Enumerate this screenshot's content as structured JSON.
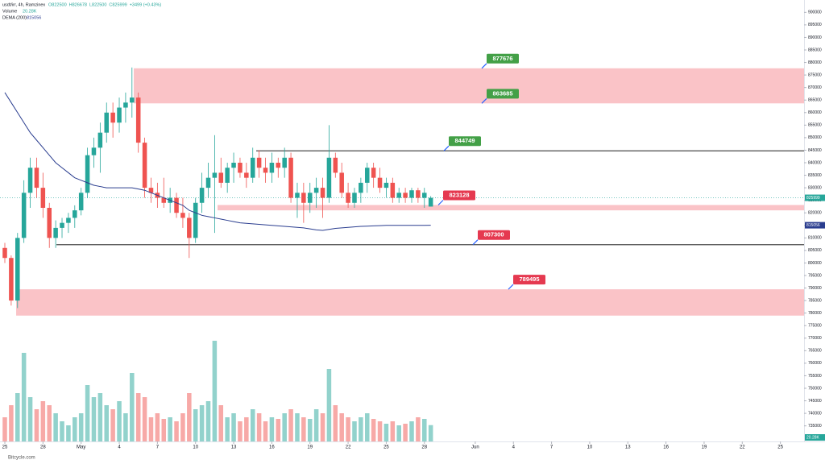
{
  "header": {
    "title": "usdt/irr, 4h, Ramzinex",
    "ohlc": [
      "O822500",
      "H826678",
      "L822500",
      "C825999",
      "+3499 (+0.43%)"
    ],
    "volume_label": "Volume",
    "volume_value": "20.28K",
    "dema_label": "DEMA (200)",
    "dema_value": "815056"
  },
  "footer": "Bitcycle.com",
  "chart_data": {
    "type": "candlestick",
    "x": [
      0,
      0.5,
      1,
      1.5,
      2,
      2.5,
      3,
      3.5,
      4,
      4.5,
      5,
      5.5,
      6,
      6.5,
      7,
      7.5,
      8,
      8.5,
      9,
      9.5,
      10,
      10.5,
      11,
      11.5,
      12,
      12.5,
      13,
      13.5,
      14,
      14.5,
      15,
      15.5,
      16,
      16.5,
      17,
      17.5,
      18,
      18.5,
      19,
      19.5,
      20,
      20.5,
      21,
      21.5,
      22,
      22.5,
      23,
      23.5,
      24,
      24.5,
      25,
      25.5,
      26,
      26.5,
      27,
      27.5,
      28,
      28.5,
      29,
      29.5,
      30,
      30.5,
      31,
      31.5,
      32,
      32.5,
      33,
      33.5
    ],
    "open": [
      806000,
      802000,
      785000,
      810000,
      828000,
      838000,
      830000,
      822000,
      810000,
      814000,
      816000,
      818000,
      821000,
      828000,
      843000,
      846000,
      852000,
      860000,
      856000,
      862000,
      864000,
      866000,
      848000,
      830000,
      828000,
      826000,
      824000,
      826000,
      820000,
      818000,
      810000,
      824000,
      830000,
      834000,
      836000,
      832000,
      838000,
      840000,
      836000,
      834000,
      842000,
      838000,
      836000,
      840000,
      838000,
      842000,
      826000,
      828000,
      824000,
      828000,
      830000,
      826000,
      842000,
      836000,
      828000,
      824000,
      828000,
      832000,
      838000,
      834000,
      830000,
      832000,
      826000,
      828000,
      826000,
      829000,
      826000,
      822500
    ],
    "high": [
      808000,
      803000,
      812000,
      833000,
      842000,
      842000,
      836000,
      824000,
      817000,
      818000,
      820000,
      823000,
      830000,
      846000,
      850000,
      856000,
      864000,
      864000,
      866000,
      868000,
      878000,
      868000,
      850000,
      834000,
      832000,
      834000,
      830000,
      828000,
      826000,
      820000,
      826000,
      836000,
      840000,
      851000,
      842000,
      840000,
      844000,
      842000,
      840000,
      846000,
      845000,
      842000,
      844000,
      842000,
      846000,
      844000,
      832000,
      832000,
      832000,
      834000,
      834000,
      855000,
      844000,
      840000,
      832000,
      830000,
      834000,
      840000,
      840000,
      838000,
      834000,
      834000,
      830000,
      830000,
      830000,
      830000,
      830000,
      826678
    ],
    "low": [
      800000,
      783000,
      782000,
      808000,
      822000,
      826000,
      818000,
      806000,
      806000,
      810000,
      812000,
      814000,
      819000,
      826000,
      838000,
      836000,
      848000,
      850000,
      852000,
      856000,
      858000,
      844000,
      826000,
      824000,
      822000,
      822000,
      820000,
      818000,
      814000,
      802000,
      808000,
      820000,
      826000,
      812000,
      830000,
      828000,
      832000,
      834000,
      830000,
      832000,
      834000,
      832000,
      832000,
      834000,
      834000,
      824000,
      818000,
      816000,
      820000,
      822000,
      818000,
      824000,
      834000,
      826000,
      822000,
      822000,
      824000,
      828000,
      830000,
      828000,
      826000,
      824000,
      824000,
      824000,
      824000,
      824000,
      822000,
      822500
    ],
    "close": [
      802000,
      785000,
      810000,
      828000,
      838000,
      830000,
      822000,
      810000,
      814000,
      816000,
      818000,
      821000,
      828000,
      843000,
      846000,
      852000,
      860000,
      856000,
      862000,
      864000,
      866000,
      848000,
      830000,
      828000,
      826000,
      824000,
      826000,
      820000,
      818000,
      810000,
      824000,
      830000,
      834000,
      836000,
      832000,
      838000,
      840000,
      836000,
      834000,
      842000,
      838000,
      836000,
      840000,
      838000,
      842000,
      826000,
      828000,
      824000,
      828000,
      830000,
      826000,
      842000,
      836000,
      828000,
      824000,
      828000,
      832000,
      838000,
      834000,
      830000,
      832000,
      826000,
      828000,
      826000,
      829000,
      826000,
      828000,
      825999
    ],
    "volume": [
      30,
      45,
      60,
      110,
      55,
      40,
      50,
      45,
      35,
      25,
      20,
      30,
      35,
      70,
      55,
      60,
      45,
      40,
      50,
      35,
      85,
      60,
      55,
      30,
      35,
      28,
      30,
      25,
      35,
      60,
      40,
      45,
      50,
      125,
      45,
      30,
      35,
      25,
      30,
      40,
      35,
      25,
      30,
      28,
      35,
      40,
      35,
      30,
      28,
      40,
      35,
      90,
      45,
      35,
      30,
      25,
      30,
      35,
      28,
      25,
      22,
      25,
      20,
      22,
      25,
      30,
      28,
      20.28
    ],
    "dema": [
      868000,
      864000,
      860000,
      856000,
      852000,
      849000,
      846000,
      843000,
      840000,
      838000,
      836000,
      834000,
      833000,
      832000,
      831000,
      830500,
      830000,
      830000,
      830000,
      830000,
      830000,
      829500,
      829000,
      828000,
      827000,
      826000,
      825000,
      824000,
      823000,
      821000,
      820000,
      819000,
      818500,
      818000,
      817500,
      817000,
      816500,
      816000,
      815800,
      815600,
      815400,
      815200,
      815000,
      814800,
      814600,
      814400,
      814200,
      814000,
      813600,
      813200,
      813000,
      813400,
      813800,
      814000,
      814200,
      814400,
      814600,
      814700,
      814800,
      814900,
      815000,
      815000,
      815000,
      815000,
      815000,
      815000,
      815000,
      815056
    ],
    "up_color": "#26a69a",
    "down_color": "#ef5350",
    "up_volume_color": "#92d2cc",
    "down_volume_color": "#f7a9a7",
    "dema_color": "#2a3d8f",
    "xlim": [
      -0.38,
      62.86
    ],
    "xticks": [
      {
        "value": 0,
        "label": "25"
      },
      {
        "value": 3,
        "label": "28"
      },
      {
        "value": 6,
        "label": "May"
      },
      {
        "value": 9,
        "label": "4"
      },
      {
        "value": 12,
        "label": "7"
      },
      {
        "value": 15,
        "label": "10"
      },
      {
        "value": 18,
        "label": "13"
      },
      {
        "value": 21,
        "label": "16"
      },
      {
        "value": 24,
        "label": "19"
      },
      {
        "value": 27,
        "label": "22"
      },
      {
        "value": 30,
        "label": "25"
      },
      {
        "value": 33,
        "label": "28"
      },
      {
        "value": 37,
        "label": "Jun"
      },
      {
        "value": 40,
        "label": "4"
      },
      {
        "value": 43,
        "label": "7"
      },
      {
        "value": 46,
        "label": "10"
      },
      {
        "value": 49,
        "label": "13"
      },
      {
        "value": 52,
        "label": "16"
      },
      {
        "value": 55,
        "label": "19"
      },
      {
        "value": 58,
        "label": "22"
      },
      {
        "value": 61,
        "label": "25"
      }
    ],
    "ylim": [
      732000,
      903000
    ],
    "yticks": [
      735000,
      740000,
      745000,
      750000,
      755000,
      760000,
      765000,
      770000,
      775000,
      780000,
      785000,
      790000,
      795000,
      800000,
      805000,
      810000,
      815000,
      820000,
      825000,
      830000,
      835000,
      840000,
      845000,
      850000,
      855000,
      860000,
      865000,
      870000,
      875000,
      880000,
      885000,
      890000,
      895000,
      900000
    ],
    "volume_lim": [
      0,
      130
    ],
    "zones": [
      {
        "top": 877676,
        "bottom": 863685,
        "start": 10.14,
        "labeled": [
          "top",
          "bottom"
        ]
      },
      {
        "top": 823128,
        "bottom": 821000,
        "start": 16.73,
        "labeled": [
          "top"
        ]
      },
      {
        "top": 789495,
        "bottom": 779000,
        "start": 0.89,
        "labeled": [
          "top"
        ]
      }
    ],
    "lines": [
      {
        "value": 844749,
        "start": 19.77
      },
      {
        "value": 807300,
        "start": 4.06
      }
    ],
    "zone_color": "#f9b8bd",
    "level_up_color": "#43a047",
    "level_down_color": "#e53950"
  }
}
